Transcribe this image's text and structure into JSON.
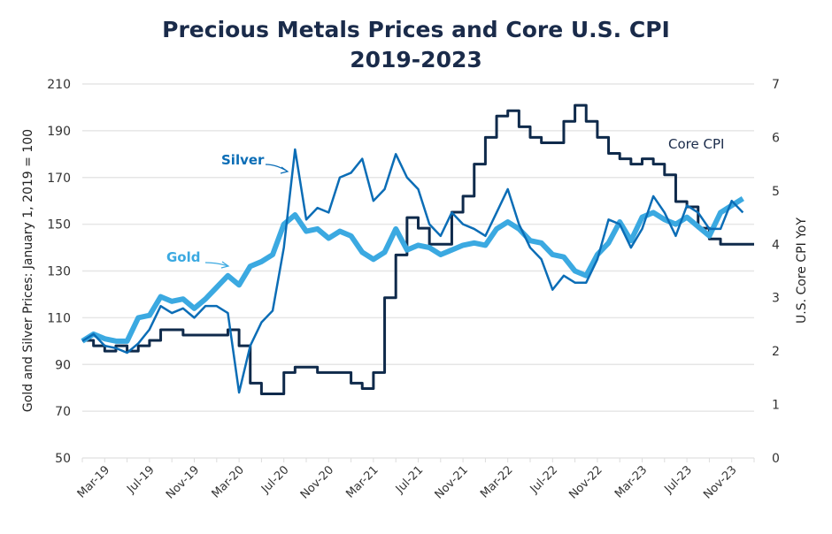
{
  "chart_data": {
    "type": "line",
    "title": "Precious Metals Prices and Core U.S. CPI",
    "subtitle": "2019-2023",
    "ylabel_left": "Gold and Silver Prices: January 1, 2019 = 100",
    "ylabel_right": "U.S. Core CPI YoY",
    "ylim_left": [
      50,
      210
    ],
    "ylim_right": [
      0,
      7
    ],
    "yticks_left": [
      50,
      70,
      90,
      110,
      130,
      150,
      170,
      190,
      210
    ],
    "yticks_right": [
      0,
      1,
      2,
      3,
      4,
      5,
      6,
      7
    ],
    "xlim": [
      "2019-01",
      "2024-01"
    ],
    "xticks": [
      {
        "date": "2019-03",
        "label": "Mar-19"
      },
      {
        "date": "2019-07",
        "label": "Jul-19"
      },
      {
        "date": "2019-11",
        "label": "Nov-19"
      },
      {
        "date": "2020-03",
        "label": "Mar-20"
      },
      {
        "date": "2020-07",
        "label": "Jul-20"
      },
      {
        "date": "2020-11",
        "label": "Nov-20"
      },
      {
        "date": "2021-03",
        "label": "Mar-21"
      },
      {
        "date": "2021-07",
        "label": "Jul-21"
      },
      {
        "date": "2021-11",
        "label": "Nov-21"
      },
      {
        "date": "2022-03",
        "label": "Mar-22"
      },
      {
        "date": "2022-07",
        "label": "Jul-22"
      },
      {
        "date": "2022-11",
        "label": "Nov-22"
      },
      {
        "date": "2023-03",
        "label": "Mar-23"
      },
      {
        "date": "2023-07",
        "label": "Jul-23"
      },
      {
        "date": "2023-11",
        "label": "Nov-23"
      }
    ],
    "grid": true,
    "months": [
      "2019-01",
      "2019-02",
      "2019-03",
      "2019-04",
      "2019-05",
      "2019-06",
      "2019-07",
      "2019-08",
      "2019-09",
      "2019-10",
      "2019-11",
      "2019-12",
      "2020-01",
      "2020-02",
      "2020-03",
      "2020-04",
      "2020-05",
      "2020-06",
      "2020-07",
      "2020-08",
      "2020-09",
      "2020-10",
      "2020-11",
      "2020-12",
      "2021-01",
      "2021-02",
      "2021-03",
      "2021-04",
      "2021-05",
      "2021-06",
      "2021-07",
      "2021-08",
      "2021-09",
      "2021-10",
      "2021-11",
      "2021-12",
      "2022-01",
      "2022-02",
      "2022-03",
      "2022-04",
      "2022-05",
      "2022-06",
      "2022-07",
      "2022-08",
      "2022-09",
      "2022-10",
      "2022-11",
      "2022-12",
      "2023-01",
      "2023-02",
      "2023-03",
      "2023-04",
      "2023-05",
      "2023-06",
      "2023-07",
      "2023-08",
      "2023-09",
      "2023-10",
      "2023-11",
      "2023-12"
    ],
    "series": [
      {
        "name": "Gold",
        "axis": "left",
        "color": "#3ba9e1",
        "values": [
          100,
          103,
          101,
          100,
          100,
          110,
          111,
          119,
          117,
          118,
          114,
          118,
          123,
          128,
          124,
          132,
          134,
          137,
          150,
          154,
          147,
          148,
          144,
          147,
          145,
          138,
          135,
          138,
          148,
          139,
          141,
          140,
          137,
          139,
          141,
          142,
          141,
          148,
          151,
          148,
          143,
          142,
          137,
          136,
          130,
          128,
          137,
          142,
          151,
          143,
          153,
          155,
          152,
          150,
          153,
          149,
          145,
          155,
          158,
          161
        ]
      },
      {
        "name": "Silver",
        "axis": "left",
        "color": "#0b6db6",
        "values": [
          100,
          103,
          98,
          97,
          95,
          99,
          105,
          115,
          112,
          114,
          110,
          115,
          115,
          112,
          78,
          98,
          108,
          113,
          140,
          182,
          152,
          157,
          155,
          170,
          172,
          178,
          160,
          165,
          180,
          170,
          165,
          150,
          145,
          155,
          150,
          148,
          145,
          155,
          165,
          150,
          140,
          135,
          122,
          128,
          125,
          125,
          135,
          152,
          150,
          140,
          148,
          162,
          155,
          145,
          158,
          155,
          148,
          148,
          160,
          155
        ]
      },
      {
        "name": "Core CPI",
        "axis": "right",
        "color": "#0f2a4b",
        "values": [
          2.2,
          2.1,
          2.0,
          2.1,
          2.0,
          2.1,
          2.2,
          2.4,
          2.4,
          2.3,
          2.3,
          2.3,
          2.3,
          2.4,
          2.1,
          1.4,
          1.2,
          1.2,
          1.6,
          1.7,
          1.7,
          1.6,
          1.6,
          1.6,
          1.4,
          1.3,
          1.6,
          3.0,
          3.8,
          4.5,
          4.3,
          4.0,
          4.0,
          4.6,
          4.9,
          5.5,
          6.0,
          6.4,
          6.5,
          6.2,
          6.0,
          5.9,
          5.9,
          6.3,
          6.6,
          6.3,
          6.0,
          5.7,
          5.6,
          5.5,
          5.6,
          5.5,
          5.3,
          4.8,
          4.7,
          4.3,
          4.1,
          4.0,
          4.0,
          4.0
        ]
      }
    ],
    "annotations": [
      {
        "text": "Silver",
        "series": "Silver",
        "arrow": true
      },
      {
        "text": "Gold",
        "series": "Gold",
        "arrow": true
      },
      {
        "text": "Core CPI",
        "series": "Core CPI",
        "arrow": false
      }
    ]
  }
}
